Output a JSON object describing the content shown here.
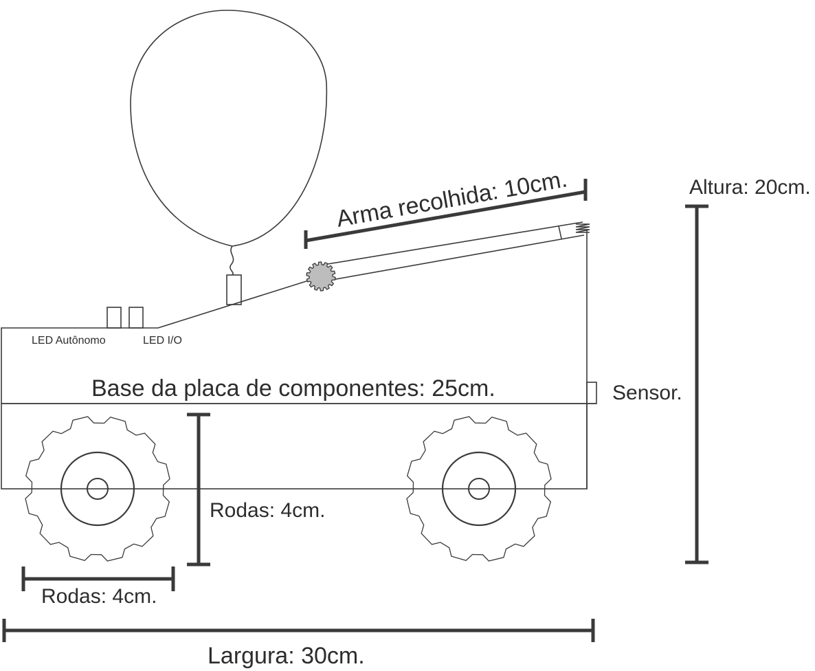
{
  "labels": {
    "arm": "Arma recolhida: 10cm.",
    "height": "Altura: 20cm.",
    "led_autonomous": "LED Autônomo",
    "led_io": "LED I/O",
    "base": "Base da placa de componentes: 25cm.",
    "sensor": "Sensor.",
    "wheels_vertical": "Rodas: 4cm.",
    "wheels_horizontal": "Rodas: 4cm.",
    "width": "Largura: 30cm."
  },
  "colors": {
    "line": "#3a3a3a",
    "gear_fill": "#bdbdbd",
    "background": "#ffffff"
  }
}
